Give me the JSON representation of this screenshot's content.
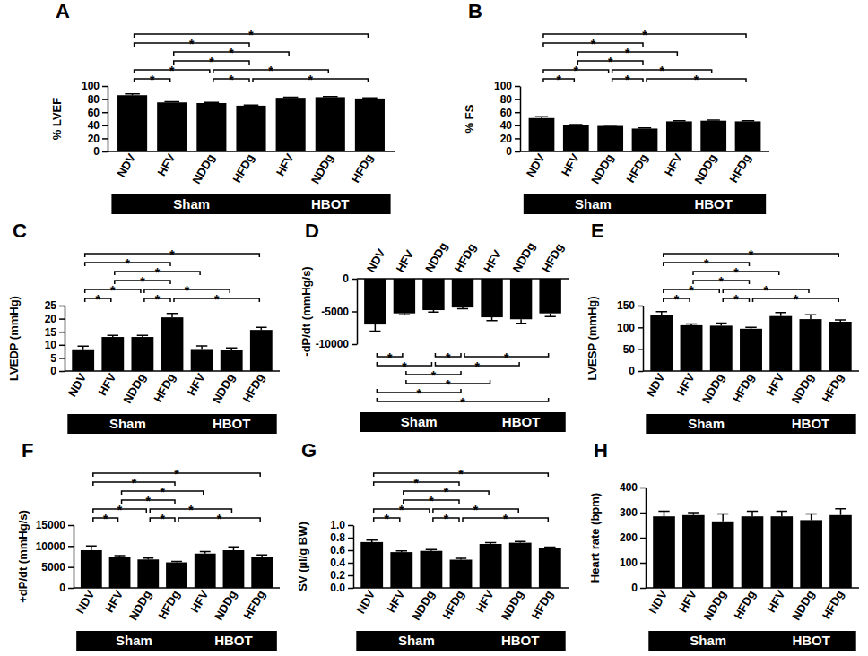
{
  "chart_data": [
    {
      "type": "bar",
      "title": "A",
      "y_label": "% LVEF",
      "categories": [
        "NDV",
        "HFV",
        "NDDg",
        "HFDg",
        "HFV",
        "NDDg",
        "HFDg"
      ],
      "values": [
        86,
        75,
        74,
        70,
        82,
        83,
        81
      ],
      "errors": [
        2,
        1,
        1,
        1,
        1,
        1,
        1
      ],
      "color": "#000000",
      "ylim": [
        0,
        100
      ],
      "yticks": [
        0,
        20,
        40,
        60,
        80,
        100
      ],
      "groups": [
        {
          "label": "Sham",
          "start": 0,
          "end": 3
        },
        {
          "label": "HBOT",
          "start": 4,
          "end": 6
        }
      ],
      "brackets": [
        {
          "from": 0,
          "to": 6,
          "label": "*"
        },
        {
          "from": 0,
          "to": 1,
          "label": "*"
        },
        {
          "from": 1,
          "to": 4,
          "label": "*"
        },
        {
          "from": 0,
          "to": 3,
          "label": "*"
        },
        {
          "from": 3,
          "to": 6,
          "label": "*"
        },
        {
          "from": 0,
          "to": 2,
          "label": "*"
        },
        {
          "from": 2,
          "to": 3,
          "label": "*"
        },
        {
          "from": 1,
          "to": 3,
          "label": "*"
        },
        {
          "from": 2,
          "to": 5,
          "label": "*"
        }
      ]
    },
    {
      "type": "bar",
      "title": "B",
      "y_label": "% FS",
      "categories": [
        "NDV",
        "HFV",
        "NDDg",
        "HFDg",
        "HFV",
        "NDDg",
        "HFDg"
      ],
      "values": [
        51,
        40,
        39,
        35,
        46,
        47,
        46
      ],
      "errors": [
        2,
        1,
        1,
        1,
        1,
        1,
        1
      ],
      "color": "#000000",
      "ylim": [
        0,
        100
      ],
      "yticks": [
        0,
        20,
        40,
        60,
        80,
        100
      ],
      "groups": [
        {
          "label": "Sham",
          "start": 0,
          "end": 3
        },
        {
          "label": "HBOT",
          "start": 4,
          "end": 6
        }
      ],
      "brackets": [
        {
          "from": 0,
          "to": 6,
          "label": "*"
        },
        {
          "from": 0,
          "to": 1,
          "label": "*"
        },
        {
          "from": 1,
          "to": 4,
          "label": "*"
        },
        {
          "from": 0,
          "to": 3,
          "label": "*"
        },
        {
          "from": 3,
          "to": 6,
          "label": "*"
        },
        {
          "from": 0,
          "to": 2,
          "label": "*"
        },
        {
          "from": 2,
          "to": 3,
          "label": "*"
        },
        {
          "from": 1,
          "to": 3,
          "label": "*"
        },
        {
          "from": 2,
          "to": 5,
          "label": "*"
        }
      ]
    },
    {
      "type": "bar",
      "title": "C",
      "y_label": "LVEDP (mmHg)",
      "categories": [
        "NDV",
        "HFV",
        "NDDg",
        "HFDg",
        "HFV",
        "NDDg",
        "HFDg"
      ],
      "values": [
        8.3,
        13,
        13,
        20.5,
        8.4,
        8,
        15.7
      ],
      "errors": [
        1.2,
        0.6,
        0.6,
        1.5,
        1.2,
        0.8,
        1
      ],
      "color": "#000000",
      "ylim": [
        0,
        25
      ],
      "yticks": [
        0,
        5,
        10,
        15,
        20,
        25
      ],
      "groups": [
        {
          "label": "Sham",
          "start": 0,
          "end": 3
        },
        {
          "label": "HBOT",
          "start": 4,
          "end": 6
        }
      ],
      "brackets": [
        {
          "from": 0,
          "to": 6,
          "label": "*"
        },
        {
          "from": 0,
          "to": 1,
          "label": "*"
        },
        {
          "from": 1,
          "to": 4,
          "label": "*"
        },
        {
          "from": 0,
          "to": 3,
          "label": "*"
        },
        {
          "from": 3,
          "to": 6,
          "label": "*"
        },
        {
          "from": 0,
          "to": 2,
          "label": "*"
        },
        {
          "from": 2,
          "to": 3,
          "label": "*"
        },
        {
          "from": 1,
          "to": 3,
          "label": "*"
        },
        {
          "from": 2,
          "to": 5,
          "label": "*"
        }
      ]
    },
    {
      "type": "bar",
      "title": "D",
      "y_label": "-dP/dt (mmHg/s)",
      "categories": [
        "NDV",
        "HFV",
        "NDDg",
        "HFDg",
        "HFV",
        "NDDg",
        "HFDg"
      ],
      "values": [
        -7000,
        -5300,
        -4800,
        -4400,
        -5900,
        -6200,
        -5300
      ],
      "errors": [
        1000,
        200,
        300,
        200,
        500,
        600,
        500
      ],
      "color": "#000000",
      "ylim": [
        -10000,
        0
      ],
      "yticks": [
        -10000,
        -5000,
        0
      ],
      "groups": [
        {
          "label": "Sham",
          "start": 0,
          "end": 3
        },
        {
          "label": "HBOT",
          "start": 4,
          "end": 6
        }
      ],
      "brackets": [
        {
          "from": 0,
          "to": 6,
          "label": "*"
        },
        {
          "from": 0,
          "to": 1,
          "label": "*"
        },
        {
          "from": 1,
          "to": 4,
          "label": "*"
        },
        {
          "from": 0,
          "to": 3,
          "label": "*"
        },
        {
          "from": 3,
          "to": 6,
          "label": "*"
        },
        {
          "from": 0,
          "to": 2,
          "label": "*"
        },
        {
          "from": 2,
          "to": 3,
          "label": "*"
        },
        {
          "from": 1,
          "to": 3,
          "label": "*"
        },
        {
          "from": 2,
          "to": 5,
          "label": "*"
        }
      ]
    },
    {
      "type": "bar",
      "title": "E",
      "y_label": "LVESP (mmHg)",
      "categories": [
        "NDV",
        "HFV",
        "NDDg",
        "HFDg",
        "HFV",
        "NDDg",
        "HFDg"
      ],
      "values": [
        128,
        105,
        104,
        97,
        126,
        119,
        113
      ],
      "errors": [
        8,
        3,
        6,
        3,
        8,
        10,
        4
      ],
      "color": "#000000",
      "ylim": [
        0,
        150
      ],
      "yticks": [
        0,
        50,
        100,
        150
      ],
      "groups": [
        {
          "label": "Sham",
          "start": 0,
          "end": 3
        },
        {
          "label": "HBOT",
          "start": 4,
          "end": 6
        }
      ],
      "brackets": [
        {
          "from": 0,
          "to": 6,
          "label": "*"
        },
        {
          "from": 0,
          "to": 1,
          "label": "*"
        },
        {
          "from": 1,
          "to": 4,
          "label": "*"
        },
        {
          "from": 0,
          "to": 3,
          "label": "*"
        },
        {
          "from": 3,
          "to": 6,
          "label": "*"
        },
        {
          "from": 0,
          "to": 2,
          "label": "*"
        },
        {
          "from": 2,
          "to": 3,
          "label": "*"
        },
        {
          "from": 1,
          "to": 3,
          "label": "*"
        },
        {
          "from": 2,
          "to": 5,
          "label": "*"
        }
      ]
    },
    {
      "type": "bar",
      "title": "F",
      "y_label": "+dP/dt (mmHg/s)",
      "categories": [
        "NDV",
        "HFV",
        "NDDg",
        "HFDg",
        "HFV",
        "NDDg",
        "HFDg"
      ],
      "values": [
        9000,
        7300,
        6800,
        6100,
        8200,
        9000,
        7500
      ],
      "errors": [
        1000,
        400,
        300,
        200,
        500,
        800,
        400
      ],
      "color": "#000000",
      "ylim": [
        0,
        15000
      ],
      "yticks": [
        0,
        5000,
        10000,
        15000
      ],
      "groups": [
        {
          "label": "Sham",
          "start": 0,
          "end": 3
        },
        {
          "label": "HBOT",
          "start": 4,
          "end": 6
        }
      ],
      "brackets": [
        {
          "from": 0,
          "to": 6,
          "label": "*"
        },
        {
          "from": 0,
          "to": 1,
          "label": "*"
        },
        {
          "from": 1,
          "to": 4,
          "label": "*"
        },
        {
          "from": 0,
          "to": 3,
          "label": "*"
        },
        {
          "from": 3,
          "to": 6,
          "label": "*"
        },
        {
          "from": 0,
          "to": 2,
          "label": "*"
        },
        {
          "from": 2,
          "to": 3,
          "label": "*"
        },
        {
          "from": 1,
          "to": 3,
          "label": "*"
        },
        {
          "from": 2,
          "to": 5,
          "label": "*"
        }
      ]
    },
    {
      "type": "bar",
      "title": "G",
      "y_label": "SV (µl/g BW)",
      "categories": [
        "NDV",
        "HFV",
        "NDDg",
        "HFDg",
        "HFV",
        "NDDg",
        "HFDg"
      ],
      "values": [
        0.73,
        0.57,
        0.59,
        0.45,
        0.7,
        0.72,
        0.64
      ],
      "errors": [
        0.03,
        0.02,
        0.02,
        0.02,
        0.02,
        0.02,
        0.01
      ],
      "color": "#000000",
      "ylim": [
        0,
        1
      ],
      "yticks": [
        {
          "value": 0,
          "label": "0.0"
        },
        0.2,
        0.4,
        0.6,
        0.8,
        {
          "value": 1,
          "label": "1.0"
        }
      ],
      "groups": [
        {
          "label": "Sham",
          "start": 0,
          "end": 3
        },
        {
          "label": "HBOT",
          "start": 4,
          "end": 6
        }
      ],
      "brackets": [
        {
          "from": 0,
          "to": 6,
          "label": "*"
        },
        {
          "from": 0,
          "to": 1,
          "label": "*"
        },
        {
          "from": 1,
          "to": 4,
          "label": "*"
        },
        {
          "from": 0,
          "to": 3,
          "label": "*"
        },
        {
          "from": 3,
          "to": 6,
          "label": "*"
        },
        {
          "from": 0,
          "to": 2,
          "label": "*"
        },
        {
          "from": 2,
          "to": 3,
          "label": "*"
        },
        {
          "from": 1,
          "to": 3,
          "label": "*"
        },
        {
          "from": 2,
          "to": 5,
          "label": "*"
        }
      ]
    },
    {
      "type": "bar",
      "title": "H",
      "y_label": "Heart rate (bpm)",
      "categories": [
        "NDV",
        "HFV",
        "NDDg",
        "HFDg",
        "HFV",
        "NDDg",
        "HFDg"
      ],
      "values": [
        285,
        290,
        265,
        285,
        285,
        270,
        290
      ],
      "errors": [
        20,
        10,
        30,
        20,
        20,
        25,
        25
      ],
      "color": "#000000",
      "ylim": [
        0,
        400
      ],
      "yticks": [
        0,
        100,
        200,
        300,
        400
      ],
      "groups": [
        {
          "label": "Sham",
          "start": 0,
          "end": 3
        },
        {
          "label": "HBOT",
          "start": 4,
          "end": 6
        }
      ],
      "brackets": []
    }
  ]
}
